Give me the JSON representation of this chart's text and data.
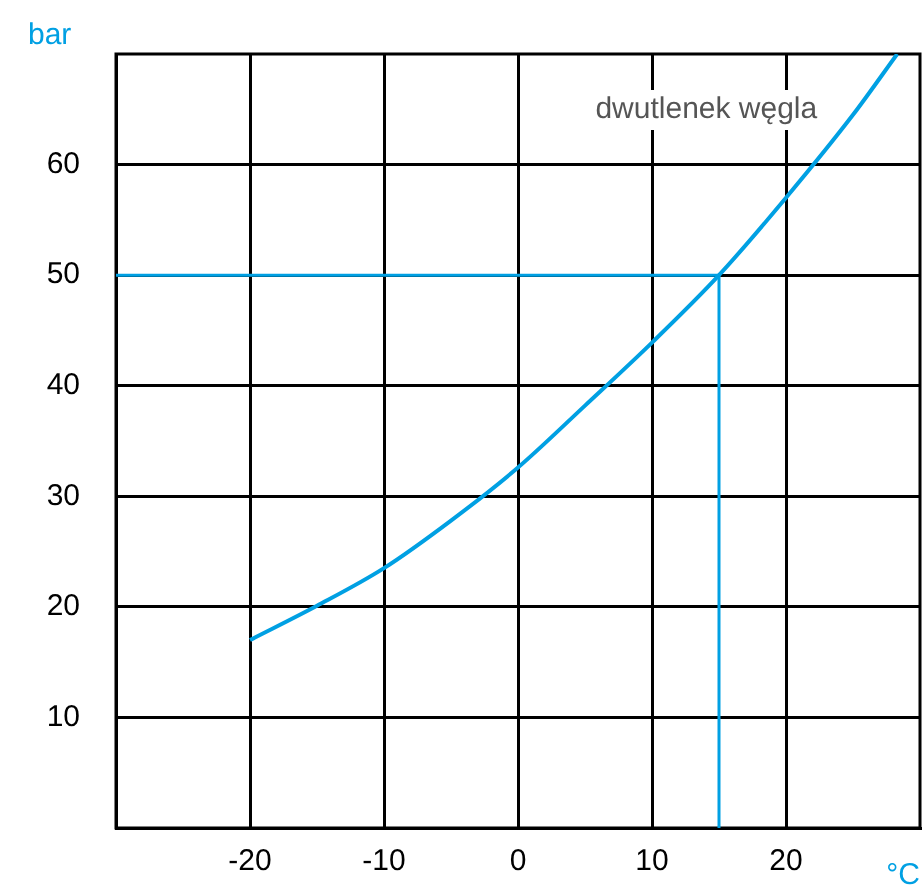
{
  "chart_data": {
    "type": "line",
    "xlabel": "°C",
    "ylabel": "bar",
    "xlim": [
      -30,
      30
    ],
    "xticks": [
      -20,
      -10,
      0,
      10,
      20
    ],
    "ylim": [
      0,
      70
    ],
    "yticks": [
      10,
      20,
      30,
      40,
      50,
      60
    ],
    "grid": true,
    "legend": false,
    "marker": "none",
    "line_style": "solid",
    "x": [
      -20,
      -15,
      -10,
      -5,
      0,
      5,
      10,
      15,
      20,
      25,
      28.3
    ],
    "series": [
      {
        "name": "dwutlenek węgla",
        "color": "#00a0e3",
        "values": [
          17,
          20.1,
          23.5,
          27.8,
          32.6,
          38.2,
          43.9,
          50,
          57,
          64.5,
          70
        ]
      }
    ],
    "ref_lines": [
      {
        "axis": "y",
        "value": 50,
        "color": "#00a0e3"
      },
      {
        "axis": "x",
        "value": 15,
        "color": "#00a0e3"
      }
    ]
  }
}
